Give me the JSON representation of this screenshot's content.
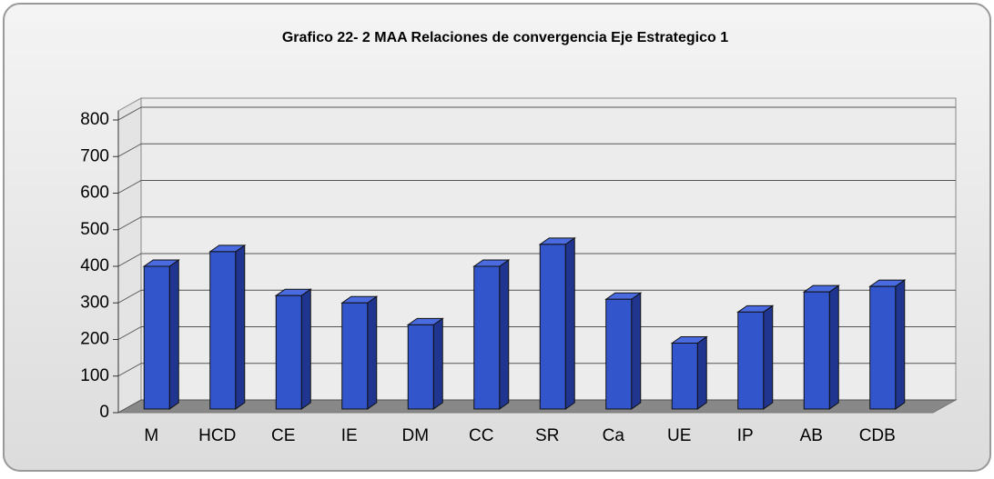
{
  "chart_data": {
    "type": "bar",
    "title": "Grafico 22- 2 MAA  Relaciones de convergencia Eje Estrategico 1",
    "categories": [
      "M",
      "HCD",
      "CE",
      "IE",
      "DM",
      "CC",
      "SR",
      "Ca",
      "UE",
      "IP",
      "AB",
      "CDB"
    ],
    "values": [
      400,
      440,
      320,
      300,
      240,
      400,
      460,
      310,
      190,
      275,
      330,
      345
    ],
    "color": "#3355cc",
    "ylim": [
      0,
      800
    ],
    "yticks": [
      0,
      100,
      200,
      300,
      400,
      500,
      600,
      700,
      800
    ],
    "grid": true
  }
}
